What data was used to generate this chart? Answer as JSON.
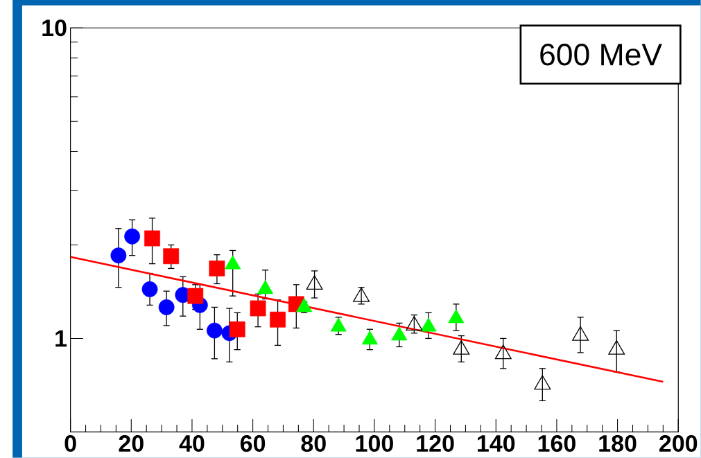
{
  "chart_data": {
    "type": "scatter",
    "log": "y",
    "xlim": [
      0,
      200
    ],
    "ylim": [
      0.5,
      10
    ],
    "xticks": [
      0,
      20,
      40,
      60,
      80,
      100,
      120,
      140,
      160,
      180,
      200
    ],
    "yticks": [
      1,
      10
    ],
    "annotations": [
      "600 MeV"
    ],
    "series": [
      {
        "color": "#0000ff",
        "marker": "circle",
        "x": [
          15.8,
          20.3,
          26.1,
          31.6,
          37.0,
          42.6,
          47.4,
          52.3
        ],
        "values": [
          1.85,
          2.13,
          1.44,
          1.26,
          1.38,
          1.28,
          1.06,
          1.04
        ],
        "errors": [
          [
            1.46,
            2.26
          ],
          [
            1.85,
            2.41
          ],
          [
            1.28,
            1.62
          ],
          [
            1.1,
            1.42
          ],
          [
            1.18,
            1.58
          ],
          [
            1.07,
            1.49
          ],
          [
            0.86,
            1.26
          ],
          [
            0.84,
            1.25
          ]
        ]
      },
      {
        "color": "#ff0000",
        "marker": "square",
        "x": [
          26.9,
          33.1,
          41.1,
          48.2,
          54.9,
          61.7,
          68.2,
          74.3
        ],
        "values": [
          2.1,
          1.84,
          1.37,
          1.68,
          1.07,
          1.25,
          1.15,
          1.29
        ],
        "errors": [
          [
            1.74,
            2.44
          ],
          [
            1.68,
            2.0
          ],
          [
            1.24,
            1.49
          ],
          [
            1.5,
            1.86
          ],
          [
            0.92,
            1.21
          ],
          [
            1.09,
            1.39
          ],
          [
            0.95,
            1.33
          ],
          [
            1.08,
            1.49
          ]
        ]
      },
      {
        "color": "#00ff00",
        "marker": "triangle",
        "x": [
          53.4,
          64.1,
          76.9,
          88.2,
          98.5,
          108.2,
          117.8,
          126.9
        ],
        "values": [
          1.73,
          1.44,
          1.26,
          1.09,
          0.99,
          1.02,
          1.09,
          1.16
        ],
        "errors": [
          [
            1.37,
            1.92
          ],
          [
            1.34,
            1.66
          ],
          [
            1.21,
            1.31
          ],
          [
            1.03,
            1.17
          ],
          [
            0.92,
            1.07
          ],
          [
            0.94,
            1.12
          ],
          [
            1.0,
            1.21
          ],
          [
            1.06,
            1.29
          ]
        ]
      },
      {
        "color": "#000000",
        "marker": "triangle-open",
        "x": [
          80.3,
          95.7,
          113.1,
          128.6,
          142.4,
          155.3,
          167.8,
          179.7
        ],
        "values": [
          1.49,
          1.36,
          1.1,
          0.92,
          0.89,
          0.71,
          1.02,
          0.92
        ],
        "errors": [
          [
            1.35,
            1.65
          ],
          [
            1.29,
            1.46
          ],
          [
            1.04,
            1.19
          ],
          [
            0.84,
            1.02
          ],
          [
            0.8,
            1.0
          ],
          [
            0.63,
            0.8
          ],
          [
            0.9,
            1.17
          ],
          [
            0.78,
            1.06
          ]
        ]
      },
      {
        "type": "line",
        "color": "#ff0000",
        "marker": "none",
        "x": [
          0,
          195
        ],
        "values": [
          1.83,
          0.725
        ]
      }
    ]
  }
}
